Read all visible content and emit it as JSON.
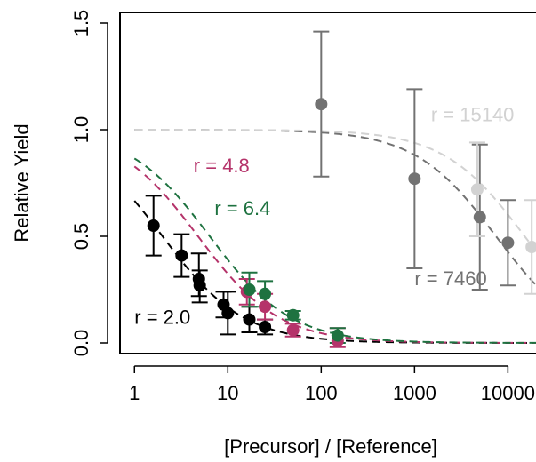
{
  "chart_data": {
    "type": "scatter",
    "xlabel": "[Precursor] / [Reference]",
    "ylabel": "Relative Yield",
    "xscale": "log",
    "xlim": [
      0.7,
      20000
    ],
    "ylim": [
      -0.05,
      1.55
    ],
    "grid": false,
    "legend": "none",
    "x_ticks": [
      {
        "value": 1,
        "label": "1"
      },
      {
        "value": 10,
        "label": "10"
      },
      {
        "value": 100,
        "label": "100"
      },
      {
        "value": 1000,
        "label": "1000"
      },
      {
        "value": 10000,
        "label": "10000"
      }
    ],
    "y_ticks": [
      {
        "value": 0.0,
        "label": "0.0"
      },
      {
        "value": 0.5,
        "label": "0.5"
      },
      {
        "value": 1.0,
        "label": "1.0"
      },
      {
        "value": 1.5,
        "label": "1.5"
      }
    ],
    "series": [
      {
        "name": "r = 2.0",
        "r": 2.0,
        "color": "#000000",
        "points": [
          {
            "x": 1.6,
            "y": 0.55,
            "lo": 0.41,
            "hi": 0.69
          },
          {
            "x": 3.2,
            "y": 0.41,
            "lo": 0.31,
            "hi": 0.51
          },
          {
            "x": 4.9,
            "y": 0.3,
            "lo": 0.22,
            "hi": 0.42
          },
          {
            "x": 5.0,
            "y": 0.27,
            "lo": 0.19,
            "hi": 0.34
          },
          {
            "x": 9.0,
            "y": 0.18,
            "lo": 0.12,
            "hi": 0.24
          },
          {
            "x": 10.0,
            "y": 0.14,
            "lo": 0.04,
            "hi": 0.24
          },
          {
            "x": 17.0,
            "y": 0.11,
            "lo": 0.05,
            "hi": 0.17
          },
          {
            "x": 25.0,
            "y": 0.075,
            "lo": 0.04,
            "hi": 0.11
          }
        ]
      },
      {
        "name": "r = 4.8",
        "r": 4.8,
        "color": "#b5336a",
        "points": [
          {
            "x": 16.0,
            "y": 0.24,
            "lo": 0.18,
            "hi": 0.3
          },
          {
            "x": 25.0,
            "y": 0.17,
            "lo": 0.11,
            "hi": 0.23
          },
          {
            "x": 50.0,
            "y": 0.06,
            "lo": 0.03,
            "hi": 0.09
          },
          {
            "x": 150.0,
            "y": 0.01,
            "lo": -0.02,
            "hi": 0.07
          }
        ]
      },
      {
        "name": "r = 6.4",
        "r": 6.4,
        "color": "#1e7240",
        "points": [
          {
            "x": 17.0,
            "y": 0.25,
            "lo": 0.17,
            "hi": 0.33
          },
          {
            "x": 25.0,
            "y": 0.23,
            "lo": 0.17,
            "hi": 0.29
          },
          {
            "x": 50.0,
            "y": 0.13,
            "lo": 0.11,
            "hi": 0.15
          },
          {
            "x": 150.0,
            "y": 0.035,
            "lo": 0.0,
            "hi": 0.07
          }
        ]
      },
      {
        "name": "r = 7460",
        "r": 7460,
        "color": "#727272",
        "points": [
          {
            "x": 100.0,
            "y": 1.12,
            "lo": 0.78,
            "hi": 1.46
          },
          {
            "x": 1000.0,
            "y": 0.77,
            "lo": 0.35,
            "hi": 1.19
          },
          {
            "x": 5000.0,
            "y": 0.59,
            "lo": 0.25,
            "hi": 0.93
          },
          {
            "x": 10000.0,
            "y": 0.47,
            "lo": 0.27,
            "hi": 0.67
          }
        ]
      },
      {
        "name": "r = 15140",
        "r": 15140,
        "color": "#d2d2d2",
        "points": [
          {
            "x": 4700.0,
            "y": 0.72,
            "lo": 0.5,
            "hi": 0.94
          },
          {
            "x": 18000.0,
            "y": 0.45,
            "lo": 0.23,
            "hi": 0.67
          }
        ]
      }
    ],
    "annotations": [
      {
        "text": "r = 2.0",
        "series": 0,
        "x": 1.0,
        "y": 0.09
      },
      {
        "text": "r = 4.8",
        "series": 1,
        "x": 4.3,
        "y": 0.8
      },
      {
        "text": "r = 6.4",
        "series": 2,
        "x": 7.2,
        "y": 0.6
      },
      {
        "text": "r = 7460",
        "series": 3,
        "x": 1000,
        "y": 0.27
      },
      {
        "text": "r = 15140",
        "series": 4,
        "x": 1500,
        "y": 1.04
      }
    ]
  }
}
